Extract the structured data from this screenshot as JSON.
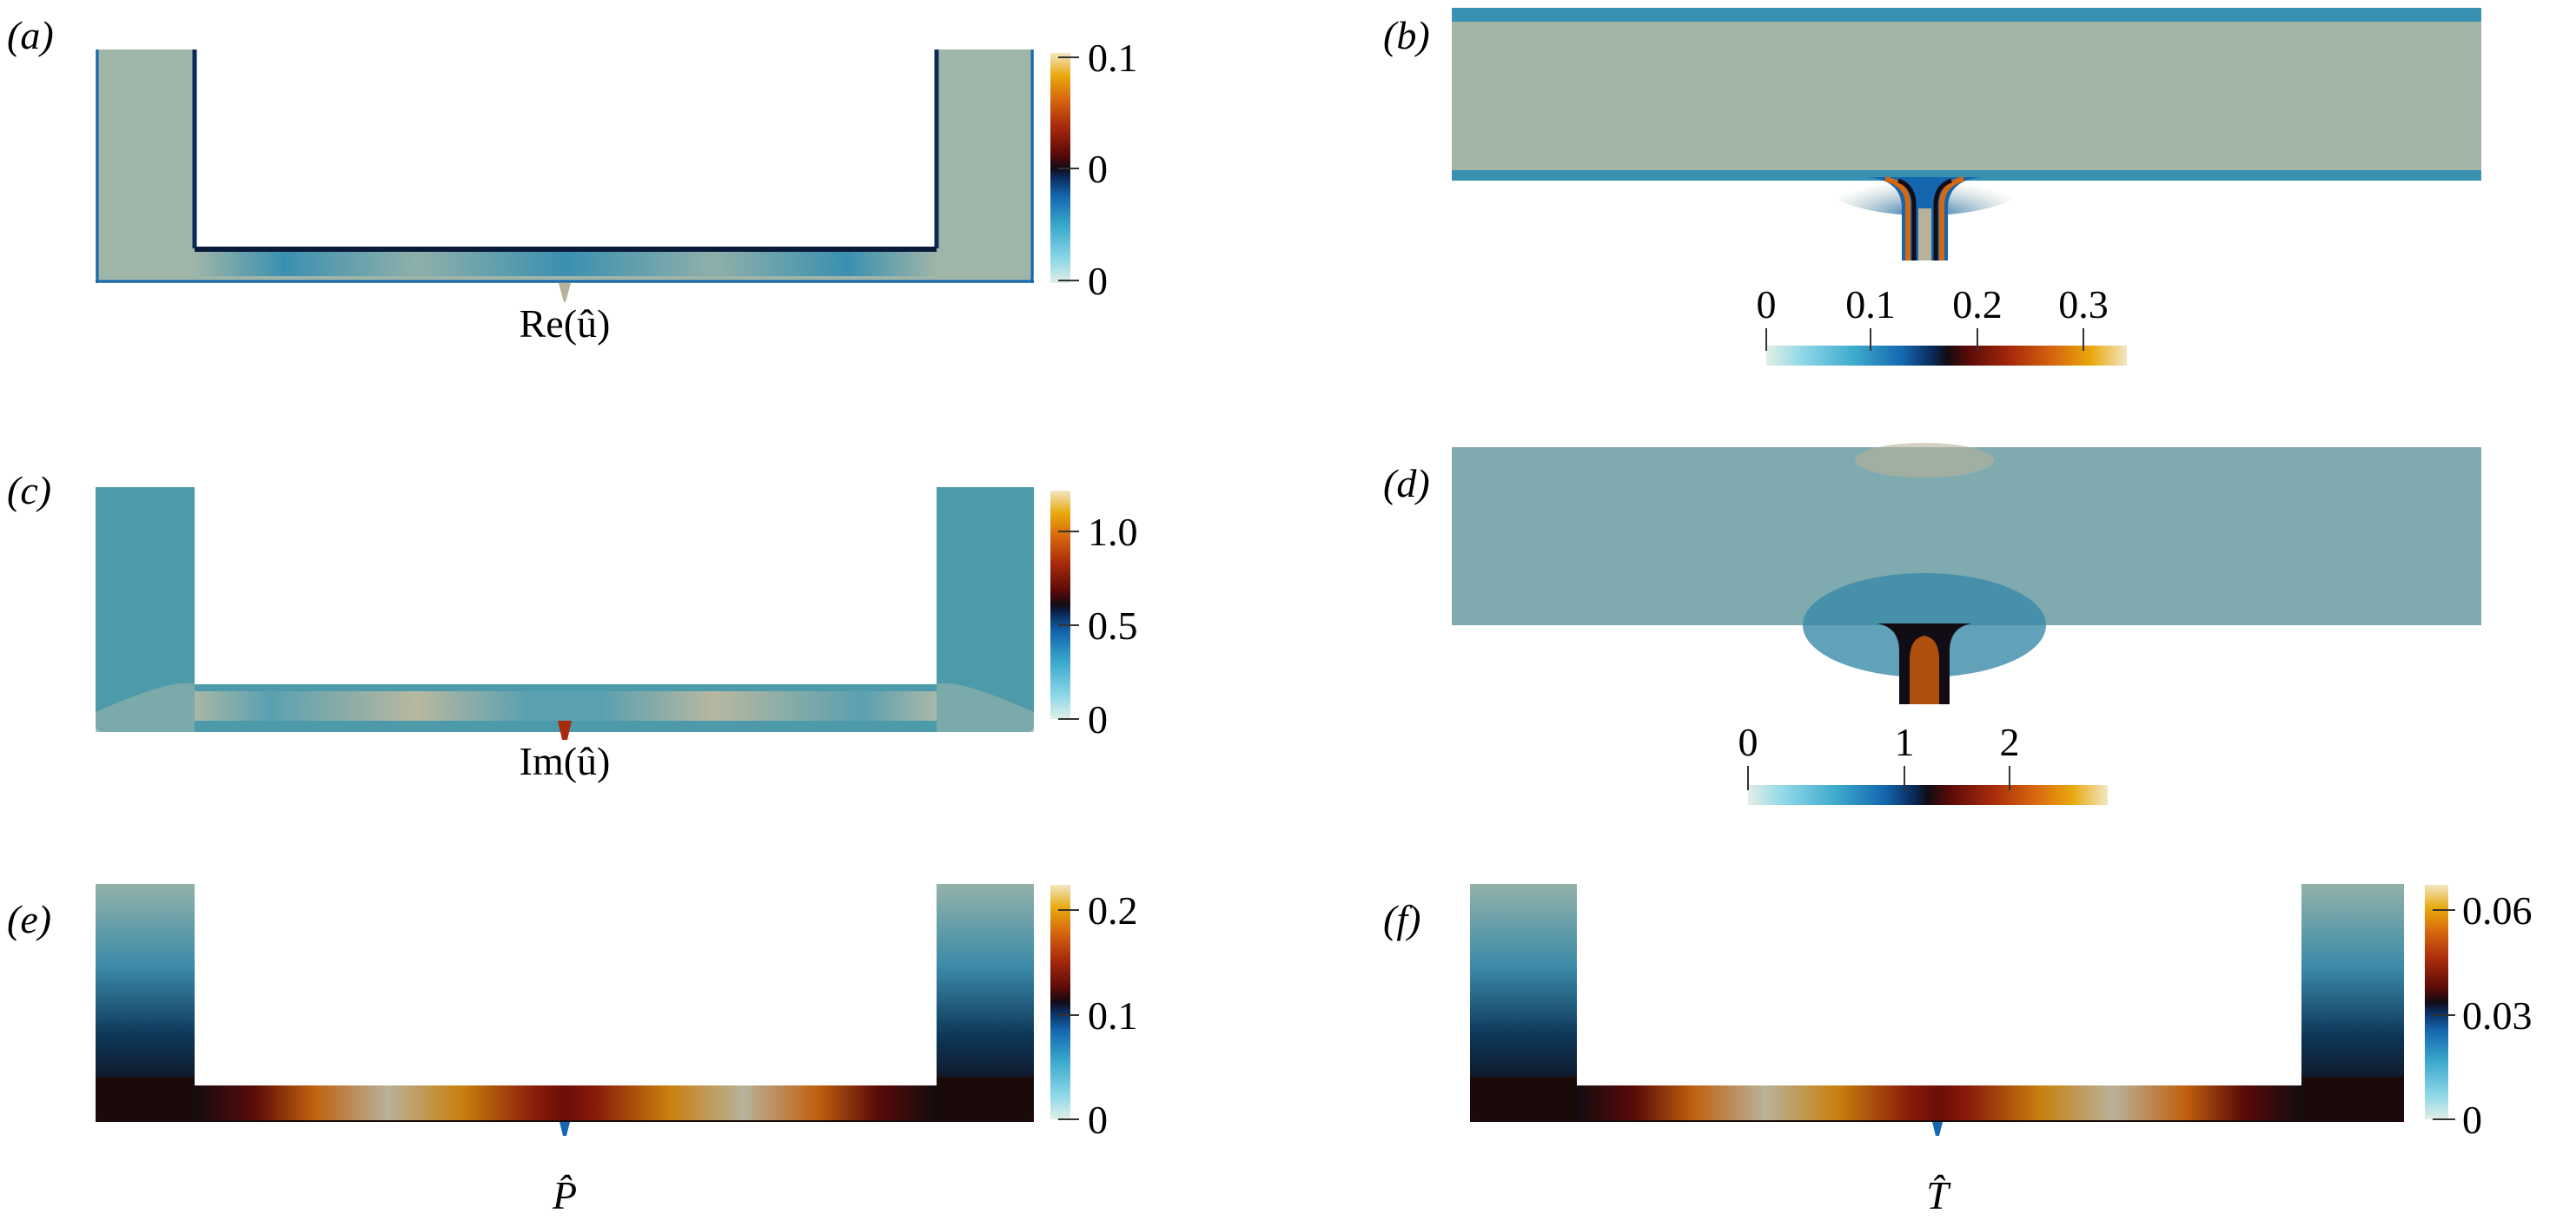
{
  "colormap": [
    "#e2eee6",
    "#8fd8e8",
    "#3aa8cc",
    "#1466ae",
    "#0a2a5a",
    "#120c14",
    "#5a0a08",
    "#a82a0c",
    "#d8680e",
    "#e8a80c",
    "#f2e6c2"
  ],
  "field_background": "#9fb5a8",
  "panels": [
    {
      "label": "(a)",
      "field_label": "Re(û)",
      "ticks": [
        "0.1",
        "0",
        "0"
      ]
    },
    {
      "label": "(b)",
      "ticks": [
        "0",
        "0.1",
        "0.2",
        "0.3"
      ]
    },
    {
      "label": "(c)",
      "field_label": "Im(û)",
      "ticks": [
        "1.0",
        "0.5",
        "0"
      ]
    },
    {
      "label": "(d)",
      "ticks": [
        "0",
        "1",
        "2"
      ]
    },
    {
      "label": "(e)",
      "field_label": "P̂",
      "ticks": [
        "0.2",
        "0.1",
        "0"
      ]
    },
    {
      "label": "(f)",
      "field_label": "T̂",
      "ticks": [
        "0.06",
        "0.03",
        "0"
      ]
    }
  ]
}
